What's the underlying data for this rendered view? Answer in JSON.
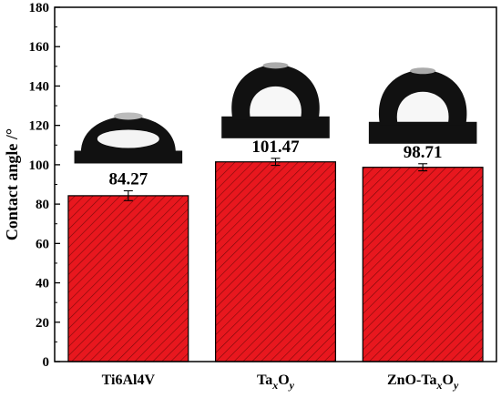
{
  "chart_data": {
    "type": "bar",
    "categories": [
      {
        "base": "Ti6Al4V",
        "sub1": "",
        "mid": "",
        "sub2": ""
      },
      {
        "base": "Ta",
        "sub1": "x",
        "mid": "O",
        "sub2": "y"
      },
      {
        "base": "ZnO-Ta",
        "sub1": "x",
        "mid": "O",
        "sub2": "y"
      }
    ],
    "values": [
      84.27,
      101.47,
      98.71
    ],
    "errors": [
      2.5,
      1.8,
      1.8
    ],
    "data_labels": [
      "84.27",
      "101.47",
      "98.71"
    ],
    "ylabel": "Contact angle /°",
    "ylim": [
      0,
      180
    ],
    "yticks": [
      0,
      20,
      40,
      60,
      80,
      100,
      120,
      140,
      160,
      180
    ],
    "bar_color": "#e8171e",
    "hatch_color": "#7a0a0a",
    "grid": false,
    "droplet_images": [
      {
        "shape": "low-dome",
        "category": "Ti6Al4V"
      },
      {
        "shape": "high-dome",
        "category": "TaxOy"
      },
      {
        "shape": "high-dome",
        "category": "ZnO-TaxOy"
      }
    ]
  }
}
